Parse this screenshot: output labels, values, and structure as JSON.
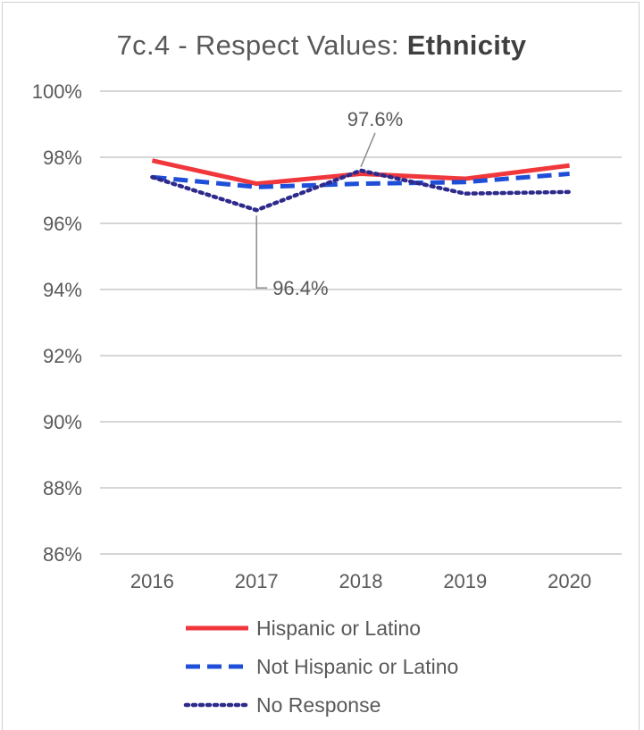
{
  "chart_data": {
    "type": "line",
    "title_prefix": "7c.4 - Respect Values: ",
    "title_bold": "Ethnicity",
    "categories": [
      "2016",
      "2017",
      "2018",
      "2019",
      "2020"
    ],
    "ylim": [
      86,
      100
    ],
    "yticks": [
      100,
      98,
      96,
      94,
      92,
      90,
      88,
      86
    ],
    "ytick_labels": [
      "100%",
      "98%",
      "96%",
      "94%",
      "92%",
      "90%",
      "88%",
      "86%"
    ],
    "grid": true,
    "legend_position": "bottom",
    "series": [
      {
        "name": "Hispanic or Latino",
        "values": [
          97.9,
          97.2,
          97.5,
          97.35,
          97.75
        ],
        "color": "#f0383c",
        "style": "solid"
      },
      {
        "name": "Not Hispanic or Latino",
        "values": [
          97.4,
          97.1,
          97.2,
          97.25,
          97.5
        ],
        "color": "#1f4fd8",
        "style": "dashed"
      },
      {
        "name": "No Response",
        "values": [
          97.4,
          96.4,
          97.6,
          96.9,
          96.95
        ],
        "color": "#2e2a8c",
        "style": "dotted"
      }
    ],
    "annotations": [
      {
        "text": "97.6%",
        "series": 2,
        "category": "2018"
      },
      {
        "text": "96.4%",
        "series": 2,
        "category": "2017"
      }
    ]
  }
}
